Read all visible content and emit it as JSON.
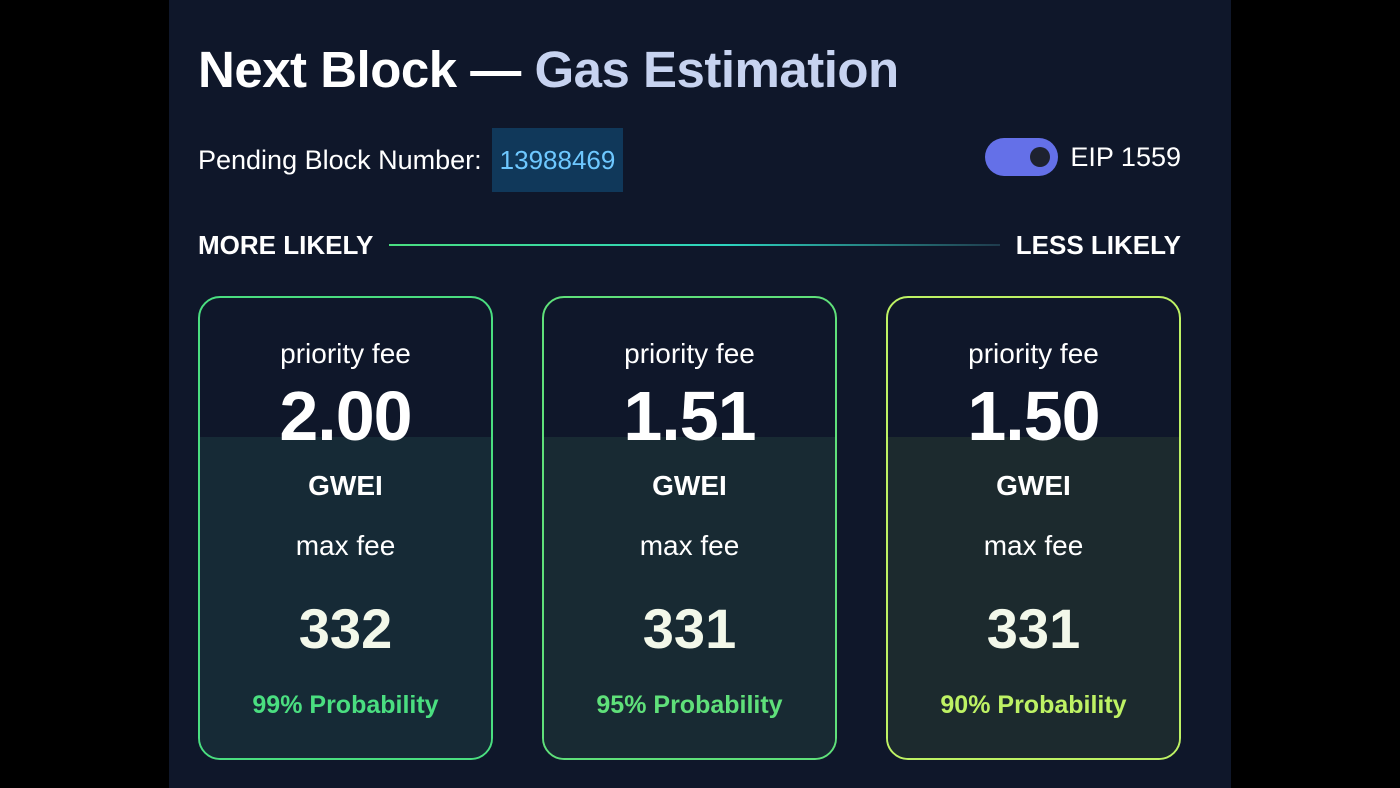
{
  "header": {
    "title_main": "Next Block — ",
    "title_accent": "Gas Estimation"
  },
  "pending": {
    "label": "Pending Block Number:",
    "value": "13988469"
  },
  "eip": {
    "label": "EIP 1559",
    "enabled": true
  },
  "likelihood": {
    "left": "MORE LIKELY",
    "right": "LESS LIKELY"
  },
  "cards": [
    {
      "priority_label": "priority fee",
      "priority_value": "2.00",
      "unit": "GWEI",
      "max_label": "max fee",
      "max_value": "332",
      "probability": "99% Probability",
      "accent_color": "#4ade80",
      "probability_color": "#4ade80",
      "fill_color": "#162a36"
    },
    {
      "priority_label": "priority fee",
      "priority_value": "1.51",
      "unit": "GWEI",
      "max_label": "max fee",
      "max_value": "331",
      "probability": "95% Probability",
      "accent_color": "#5fe07a",
      "probability_color": "#5fe07a",
      "fill_color": "#182a33"
    },
    {
      "priority_label": "priority fee",
      "priority_value": "1.50",
      "unit": "GWEI",
      "max_label": "max fee",
      "max_value": "331",
      "probability": "90% Probability",
      "accent_color": "#bef264",
      "probability_color": "#bef264",
      "fill_color": "#1c2a2e"
    }
  ]
}
